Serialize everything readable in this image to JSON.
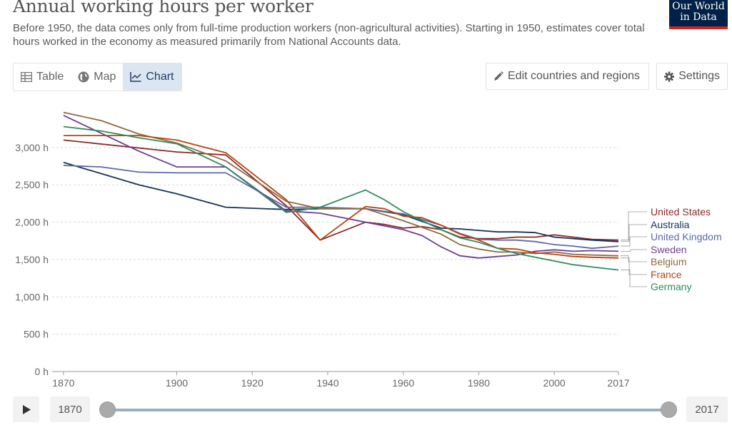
{
  "header": {
    "title": "Annual working hours per worker",
    "subtitle": "Before 1950, the data comes only from full-time production workers (non-agricultural activities). Starting in 1950, estimates cover total hours worked in the economy as measured primarily from National Accounts data.",
    "logo_line1": "Our World",
    "logo_line2": "in Data"
  },
  "tabs": [
    {
      "label": "Table",
      "icon": "table-icon"
    },
    {
      "label": "Map",
      "icon": "globe-icon"
    },
    {
      "label": "Chart",
      "icon": "line-chart-icon"
    }
  ],
  "active_tab": "Chart",
  "controls": {
    "edit_label": "Edit countries and regions",
    "settings_label": "Settings"
  },
  "timeline": {
    "start_year": "1870",
    "end_year": "2017"
  },
  "colors": {
    "United States": "#8a2a2a",
    "Australia": "#17325a",
    "United Kingdom": "#5c6aa8",
    "Sweden": "#6a3f94",
    "Belgium": "#8f6a40",
    "France": "#b8440f",
    "Germany": "#2e8b5e"
  },
  "chart_data": {
    "type": "line",
    "title": "Annual working hours per worker",
    "xlabel": "",
    "ylabel": "",
    "xlim": [
      1867,
      2017
    ],
    "ylim": [
      0,
      3600
    ],
    "x_ticks": [
      1870,
      1900,
      1920,
      1940,
      1960,
      1980,
      2000,
      2017
    ],
    "y_ticks": [
      0,
      500,
      1000,
      1500,
      2000,
      2500,
      3000
    ],
    "y_tick_labels": [
      "0 h",
      "500 h",
      "1,000 h",
      "1,500 h",
      "2,000 h",
      "2,500 h",
      "3,000 h"
    ],
    "legend_position": "right",
    "series": [
      {
        "name": "United States",
        "points": [
          [
            1870,
            3100
          ],
          [
            1900,
            2940
          ],
          [
            1913,
            2900
          ],
          [
            1929,
            2220
          ],
          [
            1938,
            1760
          ],
          [
            1950,
            2000
          ],
          [
            1955,
            1970
          ],
          [
            1960,
            1920
          ],
          [
            1965,
            1940
          ],
          [
            1970,
            1900
          ],
          [
            1975,
            1800
          ],
          [
            1980,
            1780
          ],
          [
            1985,
            1780
          ],
          [
            1990,
            1800
          ],
          [
            1995,
            1800
          ],
          [
            2000,
            1830
          ],
          [
            2005,
            1800
          ],
          [
            2010,
            1770
          ],
          [
            2017,
            1760
          ]
        ]
      },
      {
        "name": "Australia",
        "points": [
          [
            1870,
            2800
          ],
          [
            1890,
            2500
          ],
          [
            1900,
            2380
          ],
          [
            1913,
            2200
          ],
          [
            1929,
            2170
          ],
          [
            1938,
            2180
          ],
          [
            1950,
            2180
          ],
          [
            1960,
            2100
          ],
          [
            1970,
            1920
          ],
          [
            1975,
            1910
          ],
          [
            1980,
            1890
          ],
          [
            1985,
            1870
          ],
          [
            1990,
            1870
          ],
          [
            1995,
            1860
          ],
          [
            2000,
            1800
          ],
          [
            2005,
            1780
          ],
          [
            2010,
            1760
          ],
          [
            2017,
            1740
          ]
        ]
      },
      {
        "name": "United Kingdom",
        "points": [
          [
            1870,
            2760
          ],
          [
            1880,
            2740
          ],
          [
            1890,
            2670
          ],
          [
            1900,
            2660
          ],
          [
            1913,
            2660
          ],
          [
            1929,
            2200
          ],
          [
            1938,
            2200
          ],
          [
            1950,
            2180
          ],
          [
            1960,
            2110
          ],
          [
            1970,
            1960
          ],
          [
            1975,
            1850
          ],
          [
            1980,
            1770
          ],
          [
            1985,
            1760
          ],
          [
            1990,
            1760
          ],
          [
            1995,
            1740
          ],
          [
            2000,
            1700
          ],
          [
            2005,
            1680
          ],
          [
            2010,
            1650
          ],
          [
            2017,
            1680
          ]
        ]
      },
      {
        "name": "Sweden",
        "points": [
          [
            1870,
            3430
          ],
          [
            1890,
            2950
          ],
          [
            1900,
            2740
          ],
          [
            1913,
            2740
          ],
          [
            1929,
            2150
          ],
          [
            1938,
            2120
          ],
          [
            1950,
            2000
          ],
          [
            1955,
            1950
          ],
          [
            1960,
            1900
          ],
          [
            1965,
            1820
          ],
          [
            1970,
            1670
          ],
          [
            1975,
            1550
          ],
          [
            1980,
            1520
          ],
          [
            1985,
            1540
          ],
          [
            1990,
            1560
          ],
          [
            1995,
            1610
          ],
          [
            2000,
            1630
          ],
          [
            2005,
            1610
          ],
          [
            2010,
            1620
          ],
          [
            2017,
            1610
          ]
        ]
      },
      {
        "name": "Belgium",
        "points": [
          [
            1870,
            3470
          ],
          [
            1880,
            3360
          ],
          [
            1890,
            3180
          ],
          [
            1900,
            3060
          ],
          [
            1913,
            2820
          ],
          [
            1929,
            2280
          ],
          [
            1938,
            2180
          ],
          [
            1950,
            2180
          ],
          [
            1960,
            2020
          ],
          [
            1970,
            1840
          ],
          [
            1975,
            1700
          ],
          [
            1980,
            1640
          ],
          [
            1985,
            1600
          ],
          [
            1990,
            1600
          ],
          [
            1995,
            1580
          ],
          [
            2000,
            1600
          ],
          [
            2005,
            1570
          ],
          [
            2010,
            1560
          ],
          [
            2017,
            1550
          ]
        ]
      },
      {
        "name": "France",
        "points": [
          [
            1870,
            3160
          ],
          [
            1890,
            3160
          ],
          [
            1900,
            3100
          ],
          [
            1913,
            2930
          ],
          [
            1929,
            2300
          ],
          [
            1938,
            1760
          ],
          [
            1950,
            2210
          ],
          [
            1955,
            2180
          ],
          [
            1960,
            2080
          ],
          [
            1965,
            2060
          ],
          [
            1970,
            1960
          ],
          [
            1975,
            1840
          ],
          [
            1980,
            1760
          ],
          [
            1985,
            1650
          ],
          [
            1990,
            1640
          ],
          [
            1995,
            1590
          ],
          [
            2000,
            1570
          ],
          [
            2005,
            1540
          ],
          [
            2010,
            1530
          ],
          [
            2017,
            1520
          ]
        ]
      },
      {
        "name": "Germany",
        "points": [
          [
            1870,
            3280
          ],
          [
            1880,
            3220
          ],
          [
            1890,
            3130
          ],
          [
            1900,
            3050
          ],
          [
            1913,
            2740
          ],
          [
            1929,
            2130
          ],
          [
            1938,
            2200
          ],
          [
            1950,
            2430
          ],
          [
            1955,
            2300
          ],
          [
            1960,
            2140
          ],
          [
            1965,
            2020
          ],
          [
            1970,
            1900
          ],
          [
            1975,
            1790
          ],
          [
            1980,
            1730
          ],
          [
            1985,
            1650
          ],
          [
            1990,
            1580
          ],
          [
            1995,
            1530
          ],
          [
            2000,
            1480
          ],
          [
            2005,
            1430
          ],
          [
            2010,
            1400
          ],
          [
            2017,
            1360
          ]
        ]
      }
    ]
  }
}
